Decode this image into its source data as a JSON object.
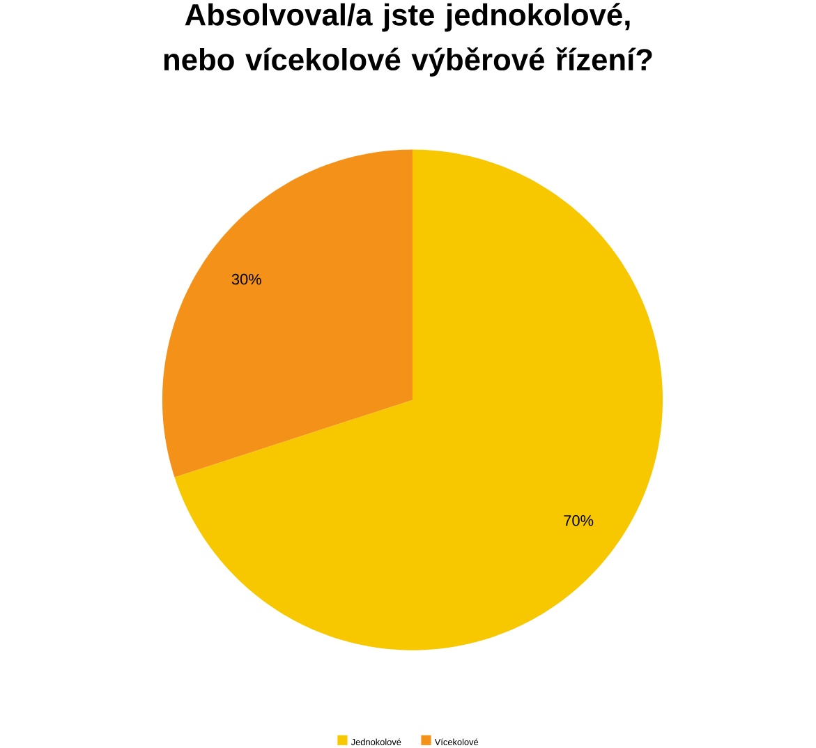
{
  "chart_data": {
    "type": "pie",
    "title": "Absolvoval/a jste jednokolové, nebo vícekolové výběrové řízení?",
    "categories": [
      "Jednokolové",
      "Vícekolové"
    ],
    "values": [
      70,
      30
    ],
    "value_labels": [
      "70%",
      "30%"
    ],
    "colors": [
      "#f7c800",
      "#f39119"
    ],
    "legend": "bottom"
  }
}
